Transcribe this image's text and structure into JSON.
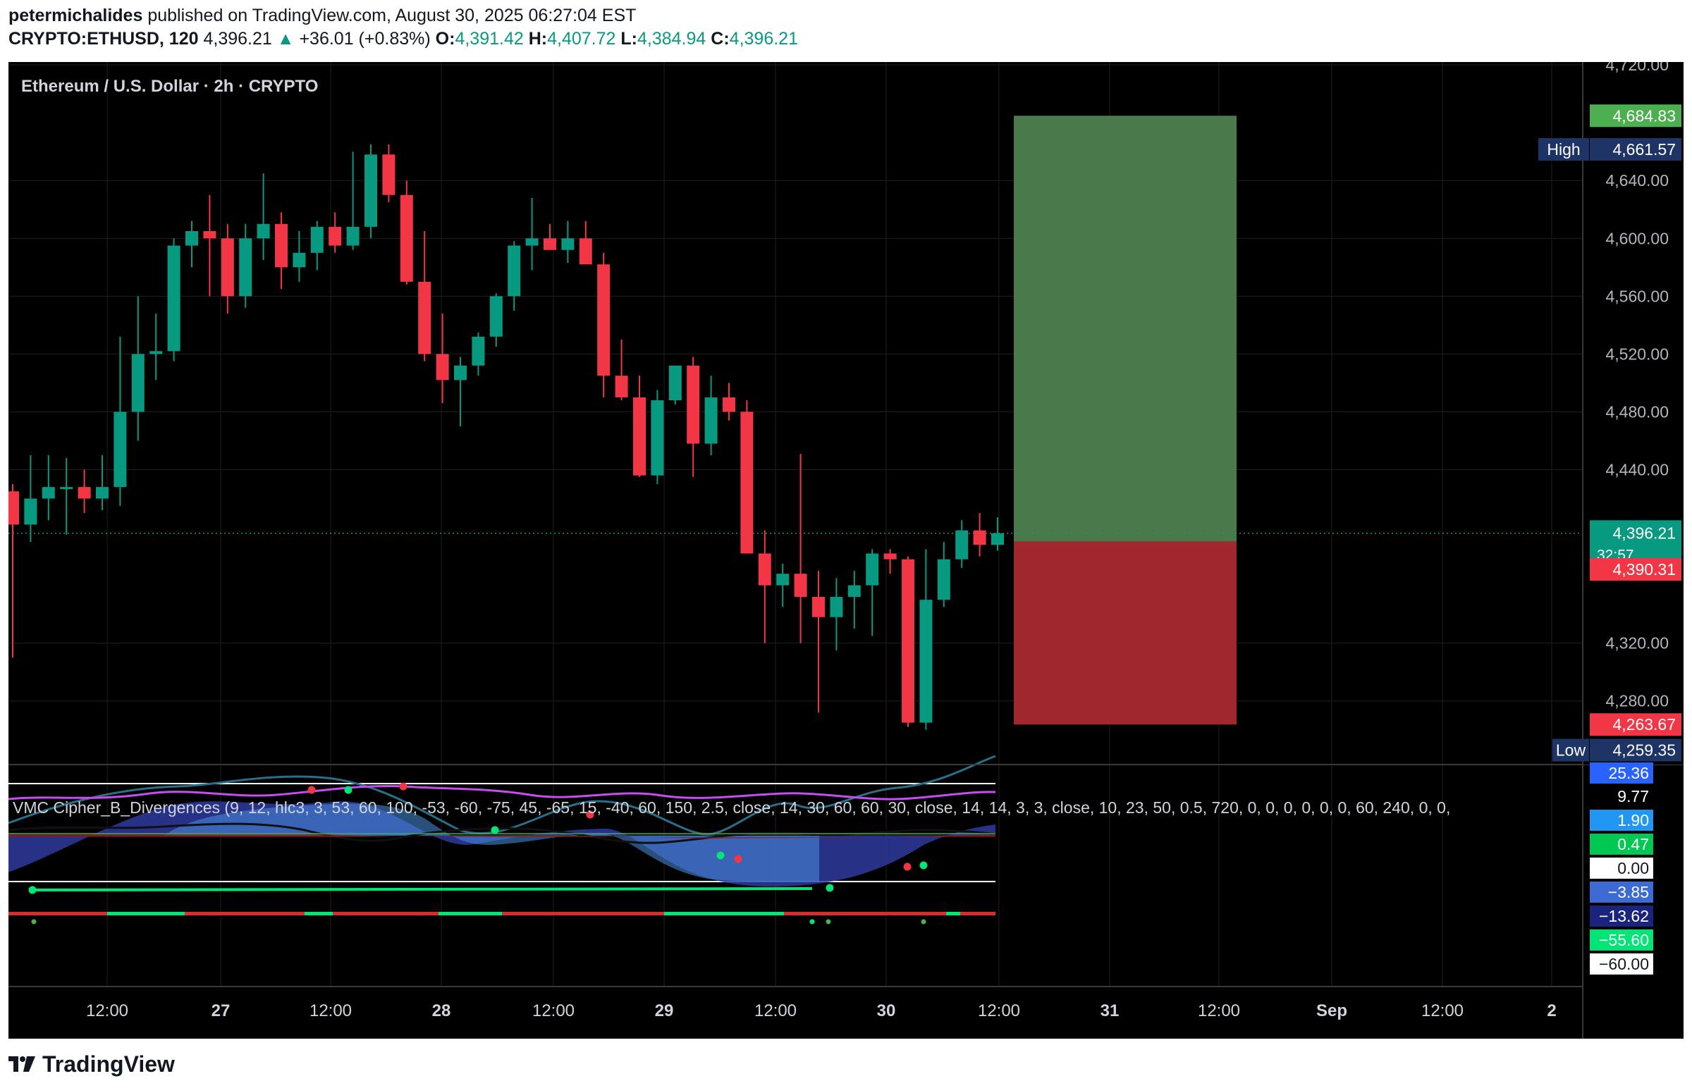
{
  "header": {
    "publisher": "petermichalides",
    "published_text": "published on TradingView.com, August 30, 2025 06:27:04 EST",
    "symbol": "CRYPTO:ETHUSD, 120",
    "last": "4,396.21",
    "change_arrow": "▲",
    "change": "+36.01 (+0.83%)",
    "o_label": "O:",
    "o_value": "4,391.42",
    "h_label": "H:",
    "h_value": "4,407.72",
    "l_label": "L:",
    "l_value": "4,384.94",
    "c_label": "C:",
    "c_value": "4,396.21"
  },
  "chart_title": "Ethereum / U.S. Dollar · 2h · CRYPTO",
  "indicator_title": "VMC Cipher_B_Divergences (9, 12, hlc3, 3, 53, 60, 100, -53, -60, -75, 45, -65, 15, -40, 60, 150, 2.5, close, 14, 30, 60, 60, 30, close, 14, 14, 3, 3, close, 10, 23, 50, 0.5, 720, 0, 0, 0, 0, 0, 0, 60, 240, 0, 0,",
  "price_axis": {
    "ticks": [
      "4,720.00",
      "4,640.00",
      "4,600.00",
      "4,560.00",
      "4,520.00",
      "4,480.00",
      "4,440.00",
      "4,320.00",
      "4,280.00"
    ],
    "tick_values": [
      4720,
      4640,
      4600,
      4560,
      4520,
      4480,
      4440,
      4320,
      4280
    ],
    "labels": {
      "target": "4,684.83",
      "high_tag": "High",
      "high": "4,661.57",
      "last": "4,396.21",
      "countdown": "32:57",
      "stop": "4,390.31",
      "stop_low": "4,263.67",
      "low_tag": "Low",
      "low": "4,259.35"
    },
    "colors": {
      "target": "#4caf50",
      "high": "#1e3466",
      "last": "#089981",
      "stop": "#f23645",
      "low": "#1e3466"
    }
  },
  "indicator_axis": {
    "labels": [
      "25.36",
      "9.77",
      "1.90",
      "0.47",
      "0.00",
      "-3.85",
      "-13.62",
      "-55.60",
      "-60.00"
    ],
    "bg_colors": [
      "#2962ff",
      "#000000",
      "#2196f3",
      "#00c853",
      "#ffffff",
      "#3d6bd6",
      "#1a237e",
      "#00e676",
      "#ffffff"
    ],
    "fg_colors": [
      "#ffffff",
      "#ffffff",
      "#ffffff",
      "#ffffff",
      "#131722",
      "#ffffff",
      "#ffffff",
      "#ffffff",
      "#131722"
    ]
  },
  "time_axis": [
    "12:00",
    "27",
    "12:00",
    "28",
    "12:00",
    "29",
    "12:00",
    "30",
    "12:00",
    "31",
    "12:00",
    "Sep",
    "12:00",
    "2"
  ],
  "position_box": {
    "entry": 4390.31,
    "target": 4684.83,
    "stop": 4263.67,
    "profit_color": "#4a7a4c",
    "loss_color": "#a1272f"
  },
  "chart_data": {
    "type": "candlestick",
    "symbol": "ETHUSD",
    "interval": "2h",
    "ylim": [
      4240,
      4720
    ],
    "candles": [
      [
        4425,
        4430,
        4310,
        4402
      ],
      [
        4402,
        4450,
        4390,
        4420
      ],
      [
        4420,
        4450,
        4405,
        4428
      ],
      [
        4428,
        4448,
        4395,
        4428
      ],
      [
        4428,
        4440,
        4410,
        4420
      ],
      [
        4420,
        4450,
        4412,
        4428
      ],
      [
        4428,
        4532,
        4415,
        4480
      ],
      [
        4480,
        4560,
        4460,
        4520
      ],
      [
        4520,
        4548,
        4502,
        4522
      ],
      [
        4522,
        4600,
        4515,
        4595
      ],
      [
        4595,
        4612,
        4580,
        4605
      ],
      [
        4605,
        4630,
        4560,
        4600
      ],
      [
        4600,
        4610,
        4548,
        4560
      ],
      [
        4560,
        4610,
        4552,
        4600
      ],
      [
        4600,
        4645,
        4585,
        4610
      ],
      [
        4610,
        4618,
        4565,
        4580
      ],
      [
        4580,
        4605,
        4570,
        4590
      ],
      [
        4590,
        4612,
        4578,
        4608
      ],
      [
        4608,
        4618,
        4590,
        4595
      ],
      [
        4595,
        4660,
        4592,
        4608
      ],
      [
        4608,
        4665,
        4600,
        4658
      ],
      [
        4658,
        4665,
        4625,
        4630
      ],
      [
        4630,
        4640,
        4568,
        4570
      ],
      [
        4570,
        4605,
        4515,
        4520
      ],
      [
        4520,
        4548,
        4486,
        4502
      ],
      [
        4502,
        4518,
        4470,
        4512
      ],
      [
        4512,
        4535,
        4505,
        4532
      ],
      [
        4532,
        4562,
        4525,
        4560
      ],
      [
        4560,
        4598,
        4550,
        4595
      ],
      [
        4595,
        4628,
        4578,
        4600
      ],
      [
        4600,
        4610,
        4592,
        4592
      ],
      [
        4592,
        4612,
        4583,
        4600
      ],
      [
        4600,
        4612,
        4585,
        4582
      ],
      [
        4582,
        4590,
        4490,
        4505
      ],
      [
        4505,
        4530,
        4488,
        4490
      ],
      [
        4490,
        4505,
        4435,
        4436
      ],
      [
        4436,
        4495,
        4430,
        4488
      ],
      [
        4488,
        4510,
        4485,
        4512
      ],
      [
        4512,
        4518,
        4435,
        4458
      ],
      [
        4458,
        4505,
        4450,
        4490
      ],
      [
        4490,
        4500,
        4474,
        4480
      ],
      [
        4480,
        4488,
        4386,
        4382
      ],
      [
        4382,
        4398,
        4320,
        4360
      ],
      [
        4360,
        4375,
        4345,
        4368
      ],
      [
        4368,
        4451,
        4320,
        4352
      ],
      [
        4352,
        4370,
        4272,
        4338
      ],
      [
        4338,
        4365,
        4315,
        4352
      ],
      [
        4352,
        4370,
        4330,
        4360
      ],
      [
        4360,
        4385,
        4325,
        4382
      ],
      [
        4382,
        4385,
        4368,
        4378
      ],
      [
        4378,
        4380,
        4262,
        4265
      ],
      [
        4265,
        4385,
        4260,
        4350
      ],
      [
        4350,
        4390,
        4345,
        4378
      ],
      [
        4378,
        4405,
        4372,
        4398
      ],
      [
        4398,
        4410,
        4380,
        4388
      ],
      [
        4388,
        4407,
        4384,
        4396
      ]
    ]
  }
}
